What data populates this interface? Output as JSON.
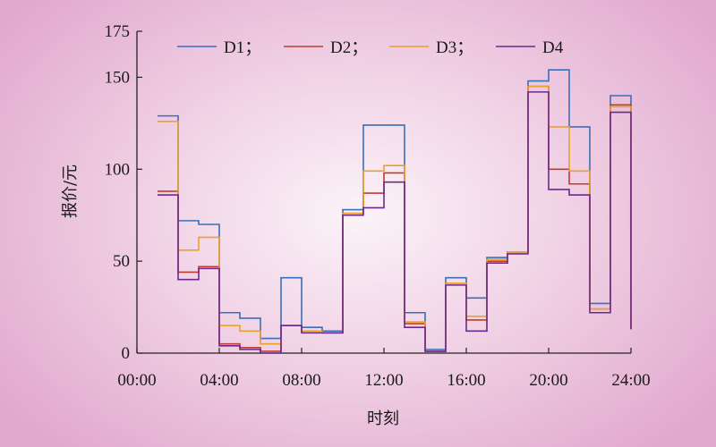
{
  "chart_data": {
    "type": "line",
    "step": "post",
    "ylabel": "报价/元",
    "xlabel": "时刻",
    "ylim": [
      0,
      175
    ],
    "xlim": [
      0,
      24
    ],
    "yticks": [
      0,
      50,
      100,
      150,
      175
    ],
    "xticks": [
      0,
      4,
      8,
      12,
      16,
      20,
      24
    ],
    "xtick_labels": [
      "00:00",
      "04:00",
      "08:00",
      "12:00",
      "16:00",
      "20:00",
      "24:00"
    ],
    "legend_position": "top",
    "x": [
      1,
      2,
      3,
      4,
      5,
      6,
      7,
      8,
      9,
      10,
      11,
      12,
      13,
      14,
      15,
      16,
      17,
      18,
      19,
      20,
      21,
      22,
      23,
      24
    ],
    "series": [
      {
        "name": "D1；",
        "color": "#3a6fb7",
        "values": [
          129,
          72,
          70,
          22,
          19,
          8,
          41,
          14,
          12,
          78,
          124,
          124,
          22,
          2,
          41,
          30,
          52,
          55,
          148,
          154,
          123,
          27,
          140,
          13
        ]
      },
      {
        "name": "D2；",
        "color": "#c23b2f",
        "values": [
          88,
          44,
          47,
          5,
          3,
          1,
          15,
          12,
          11,
          76,
          87,
          98,
          16,
          1,
          38,
          18,
          50,
          55,
          145,
          100,
          92,
          24,
          135,
          13
        ]
      },
      {
        "name": "D3；",
        "color": "#e9a12c",
        "values": [
          126,
          56,
          63,
          15,
          12,
          5,
          15,
          12,
          11,
          76,
          99,
          102,
          17,
          1,
          38,
          20,
          51,
          55,
          145,
          123,
          99,
          24,
          134,
          13
        ]
      },
      {
        "name": "D4",
        "color": "#6a2a8f",
        "values": [
          86,
          40,
          46,
          4,
          2,
          0,
          15,
          11,
          11,
          75,
          79,
          93,
          14,
          1,
          37,
          12,
          49,
          54,
          142,
          89,
          86,
          22,
          131,
          13
        ]
      }
    ]
  }
}
